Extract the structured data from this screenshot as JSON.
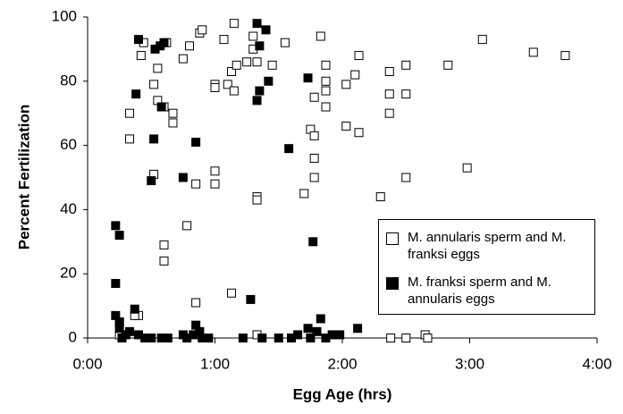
{
  "chart_data": {
    "type": "scatter",
    "xlabel": "Egg Age (hrs)",
    "ylabel": "Percent Fertilization",
    "xlim": [
      0,
      4
    ],
    "ylim": [
      0,
      100
    ],
    "xticks": [
      {
        "value": 0,
        "label": "0:00"
      },
      {
        "value": 1,
        "label": "1:00"
      },
      {
        "value": 2,
        "label": "2:00"
      },
      {
        "value": 3,
        "label": "3:00"
      },
      {
        "value": 4,
        "label": "4:00"
      }
    ],
    "yticks": [
      0,
      20,
      40,
      60,
      80,
      100
    ],
    "grid": false,
    "legend": "lower right",
    "series": [
      {
        "name": "M. annularis sperm and M. franksi eggs",
        "color": "#ffffff",
        "x": [
          0.25,
          0.25,
          0.4,
          0.37,
          0.33,
          0.33,
          0.42,
          0.44,
          0.52,
          0.55,
          0.55,
          0.52,
          0.6,
          0.62,
          0.6,
          0.6,
          0.67,
          0.67,
          0.75,
          0.8,
          0.85,
          0.85,
          0.78,
          0.88,
          0.9,
          1.0,
          1.0,
          1.0,
          1.0,
          1.07,
          1.1,
          1.13,
          1.15,
          1.15,
          1.17,
          1.13,
          1.25,
          1.3,
          1.3,
          1.33,
          1.33,
          1.33,
          1.33,
          1.45,
          1.55,
          1.7,
          1.75,
          1.78,
          1.78,
          1.78,
          1.78,
          1.83,
          1.87,
          1.87,
          1.87,
          1.87,
          2.03,
          2.03,
          2.1,
          2.13,
          2.13,
          2.3,
          2.37,
          2.37,
          2.37,
          2.38,
          2.5,
          2.5,
          2.5,
          2.5,
          2.65,
          2.67,
          2.83,
          2.98,
          3.1,
          3.5,
          3.75
        ],
        "values": [
          1,
          5,
          7,
          7,
          70,
          62,
          88,
          92,
          79,
          84,
          74,
          51,
          72,
          92,
          29,
          24,
          70,
          67,
          87,
          91,
          48,
          11,
          35,
          95,
          96,
          79,
          78,
          52,
          48,
          93,
          79,
          83,
          98,
          77,
          85,
          14,
          86,
          94,
          90,
          86,
          44,
          43,
          1,
          85,
          92,
          45,
          65,
          63,
          56,
          50,
          75,
          94,
          85,
          80,
          72,
          77,
          79,
          66,
          82,
          88,
          64,
          44,
          83,
          76,
          70,
          0,
          85,
          76,
          50,
          0,
          1,
          0,
          85,
          53,
          93,
          89,
          88
        ]
      },
      {
        "name": "M. franksi sperm and M. annularis eggs",
        "color": "#000000",
        "x": [
          0.22,
          0.25,
          0.22,
          0.22,
          0.25,
          0.25,
          0.27,
          0.3,
          0.33,
          0.37,
          0.4,
          0.4,
          0.38,
          0.45,
          0.5,
          0.52,
          0.53,
          0.57,
          0.6,
          0.58,
          0.5,
          0.58,
          0.63,
          0.75,
          0.85,
          0.75,
          0.78,
          0.83,
          0.85,
          0.88,
          0.9,
          0.95,
          1.22,
          1.28,
          1.33,
          1.35,
          1.33,
          1.35,
          1.4,
          1.42,
          1.37,
          1.5,
          1.58,
          1.6,
          1.65,
          1.73,
          1.77,
          1.73,
          1.75,
          1.8,
          1.83,
          1.87,
          1.92,
          1.98,
          2.12
        ],
        "values": [
          35,
          32,
          17,
          7,
          5,
          3,
          0,
          1,
          2,
          9,
          1,
          93,
          76,
          0,
          49,
          62,
          90,
          91,
          92,
          72,
          0,
          0,
          0,
          50,
          61,
          1,
          0,
          1,
          4,
          2,
          0,
          0,
          0,
          12,
          98,
          91,
          74,
          77,
          96,
          80,
          0,
          0,
          59,
          0,
          1,
          81,
          30,
          3,
          0,
          2,
          6,
          0,
          1,
          1,
          3
        ]
      }
    ]
  }
}
